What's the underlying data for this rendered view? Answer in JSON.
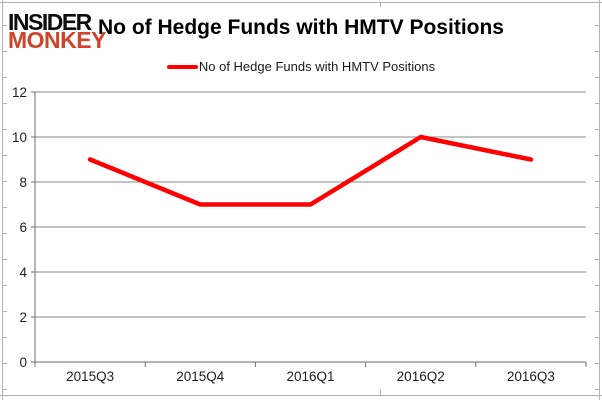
{
  "logo": {
    "line1": "INSIDER",
    "line2": "MONKEY"
  },
  "header": {
    "title": "No of Hedge Funds with HMTV Positions"
  },
  "legend": {
    "label": "No of Hedge Funds with HMTV Positions"
  },
  "colors": {
    "series": "#ff0000",
    "logo_accent": "#d0432b",
    "logo_text": "#0d0d0d",
    "gridline": "#8a8a8a",
    "axis": "#6e6e6e",
    "tick_text": "#1f1f1f"
  },
  "chart_data": {
    "type": "line",
    "title": "No of Hedge Funds with HMTV Positions",
    "categories": [
      "2015Q3",
      "2015Q4",
      "2016Q1",
      "2016Q2",
      "2016Q3"
    ],
    "series": [
      {
        "name": "No of Hedge Funds with HMTV Positions",
        "values": [
          9,
          7,
          7,
          10,
          9
        ],
        "color": "#ff0000"
      }
    ],
    "xlabel": "",
    "ylabel": "",
    "ylim": [
      0,
      12
    ],
    "ytick_step": 2,
    "grid": true,
    "legend_position": "top"
  }
}
